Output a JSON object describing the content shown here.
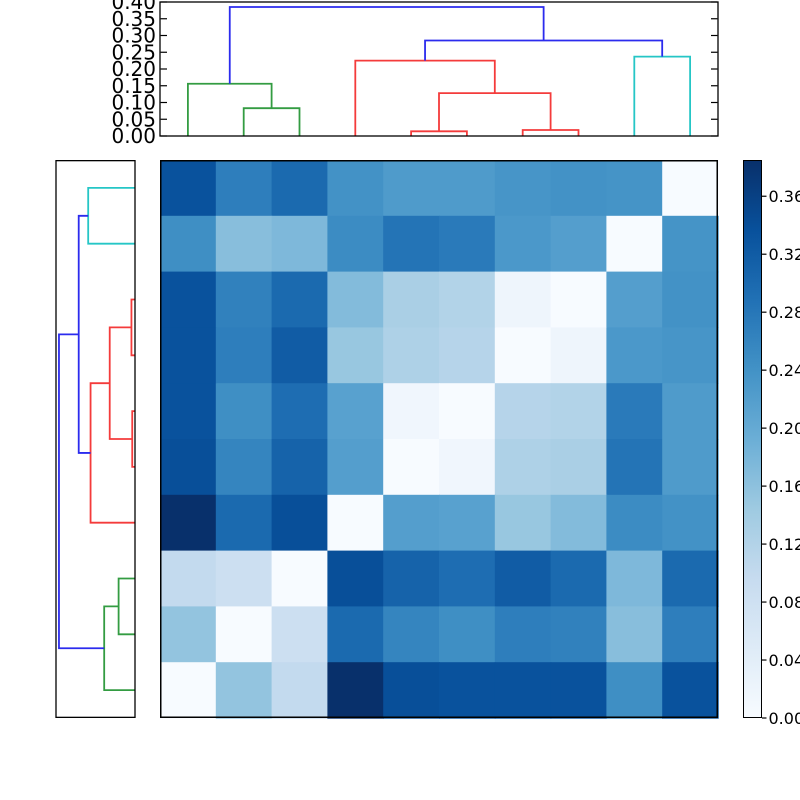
{
  "figure": {
    "background": "#ffffff",
    "kind": "clustermap"
  },
  "chart_data": {
    "type": "heatmap",
    "title": "",
    "xlabel": "",
    "ylabel": "",
    "colormap": "Blues",
    "vmin": 0.0,
    "vmax": 0.385,
    "grid": false,
    "legend_position": "colorbar-right",
    "matrix": [
      [
        0.335,
        0.27,
        0.3,
        0.24,
        0.225,
        0.225,
        0.235,
        0.24,
        0.237,
        0.0
      ],
      [
        0.245,
        0.165,
        0.175,
        0.25,
        0.285,
        0.275,
        0.23,
        0.22,
        0.0,
        0.237
      ],
      [
        0.335,
        0.265,
        0.3,
        0.17,
        0.13,
        0.12,
        0.018,
        0.0,
        0.22,
        0.24
      ],
      [
        0.335,
        0.27,
        0.32,
        0.15,
        0.125,
        0.115,
        0.0,
        0.018,
        0.23,
        0.235
      ],
      [
        0.335,
        0.245,
        0.295,
        0.215,
        0.014,
        0.0,
        0.115,
        0.12,
        0.275,
        0.225
      ],
      [
        0.34,
        0.26,
        0.31,
        0.22,
        0.0,
        0.014,
        0.125,
        0.13,
        0.285,
        0.225
      ],
      [
        0.385,
        0.3,
        0.34,
        0.0,
        0.22,
        0.215,
        0.15,
        0.17,
        0.25,
        0.24
      ],
      [
        0.1,
        0.085,
        0.0,
        0.34,
        0.31,
        0.295,
        0.32,
        0.3,
        0.175,
        0.3
      ],
      [
        0.155,
        0.0,
        0.085,
        0.3,
        0.26,
        0.245,
        0.27,
        0.265,
        0.165,
        0.27
      ],
      [
        0.0,
        0.155,
        0.1,
        0.385,
        0.34,
        0.335,
        0.335,
        0.335,
        0.245,
        0.335
      ]
    ],
    "top_dendrogram": {
      "orientation": "top",
      "ylim": [
        0.0,
        0.4
      ],
      "ticks": [
        "0.40",
        "0.35",
        "0.30",
        "0.25",
        "0.20",
        "0.15",
        "0.10",
        "0.05",
        "0.00"
      ],
      "tick_values": [
        0.4,
        0.35,
        0.3,
        0.25,
        0.2,
        0.15,
        0.1,
        0.05,
        0.0
      ],
      "leaf_positions": [
        5,
        15,
        25,
        35,
        45,
        55,
        65,
        75,
        85,
        95
      ],
      "links": [
        {
          "color": "green",
          "p1": 15,
          "p2": 25,
          "h": 0.083,
          "h1": 0,
          "h2": 0
        },
        {
          "color": "green",
          "p1": 5,
          "p2": 20,
          "h": 0.156,
          "h1": 0,
          "h2": 0.083
        },
        {
          "color": "red",
          "p1": 45,
          "p2": 55,
          "h": 0.014,
          "h1": 0,
          "h2": 0
        },
        {
          "color": "red",
          "p1": 65,
          "p2": 75,
          "h": 0.018,
          "h1": 0,
          "h2": 0
        },
        {
          "color": "red",
          "p1": 50,
          "p2": 70,
          "h": 0.128,
          "h1": 0.014,
          "h2": 0.018
        },
        {
          "color": "red",
          "p1": 35,
          "p2": 60,
          "h": 0.225,
          "h1": 0,
          "h2": 0.128
        },
        {
          "color": "cyan",
          "p1": 85,
          "p2": 95,
          "h": 0.237,
          "h1": 0,
          "h2": 0
        },
        {
          "color": "blue",
          "p1": 47.5,
          "p2": 90,
          "h": 0.285,
          "h1": 0.225,
          "h2": 0.237
        },
        {
          "color": "blue",
          "p1": 12.5,
          "p2": 68.75,
          "h": 0.385,
          "h1": 0.156,
          "h2": 0.285
        }
      ]
    },
    "left_dendrogram": {
      "orientation": "left",
      "xlim": [
        0.0,
        0.4
      ],
      "ticks": [],
      "leaf_positions": [
        5,
        15,
        25,
        35,
        45,
        55,
        65,
        75,
        85,
        95
      ],
      "links": [
        {
          "color": "cyan",
          "p1": 5,
          "p2": 15,
          "h": 0.237,
          "h1": 0,
          "h2": 0
        },
        {
          "color": "red",
          "p1": 25,
          "p2": 35,
          "h": 0.018,
          "h1": 0,
          "h2": 0
        },
        {
          "color": "red",
          "p1": 45,
          "p2": 55,
          "h": 0.014,
          "h1": 0,
          "h2": 0
        },
        {
          "color": "red",
          "p1": 30,
          "p2": 50,
          "h": 0.128,
          "h1": 0.018,
          "h2": 0.014
        },
        {
          "color": "red",
          "p1": 40,
          "p2": 65,
          "h": 0.225,
          "h1": 0.128,
          "h2": 0
        },
        {
          "color": "blue",
          "p1": 10,
          "p2": 52.5,
          "h": 0.285,
          "h1": 0.237,
          "h2": 0.225
        },
        {
          "color": "green",
          "p1": 75,
          "p2": 85,
          "h": 0.083,
          "h1": 0,
          "h2": 0
        },
        {
          "color": "green",
          "p1": 80,
          "p2": 95,
          "h": 0.156,
          "h1": 0.083,
          "h2": 0
        },
        {
          "color": "blue",
          "p1": 31.25,
          "p2": 87.5,
          "h": 0.385,
          "h1": 0.285,
          "h2": 0.156
        }
      ]
    },
    "colorbar": {
      "position": "right",
      "ticks": [
        "0.36",
        "0.32",
        "0.28",
        "0.24",
        "0.20",
        "0.16",
        "0.12",
        "0.08",
        "0.04",
        "0.00"
      ],
      "tick_values": [
        0.36,
        0.32,
        0.28,
        0.24,
        0.2,
        0.16,
        0.12,
        0.08,
        0.04,
        0.0
      ]
    }
  },
  "colors": {
    "link_blue": "#2b2bee",
    "link_green": "#339c42",
    "link_red": "#f43b3b",
    "link_cyan": "#25c6c6",
    "axes_edge": "#000000",
    "tick_label": "#000000",
    "blues_anchors": [
      [
        0.0,
        "#f7fbff"
      ],
      [
        0.125,
        "#deebf7"
      ],
      [
        0.25,
        "#c6dbef"
      ],
      [
        0.375,
        "#9ecae1"
      ],
      [
        0.5,
        "#6baed6"
      ],
      [
        0.625,
        "#4292c6"
      ],
      [
        0.75,
        "#2171b5"
      ],
      [
        0.875,
        "#08519c"
      ],
      [
        1.0,
        "#08306b"
      ]
    ]
  }
}
